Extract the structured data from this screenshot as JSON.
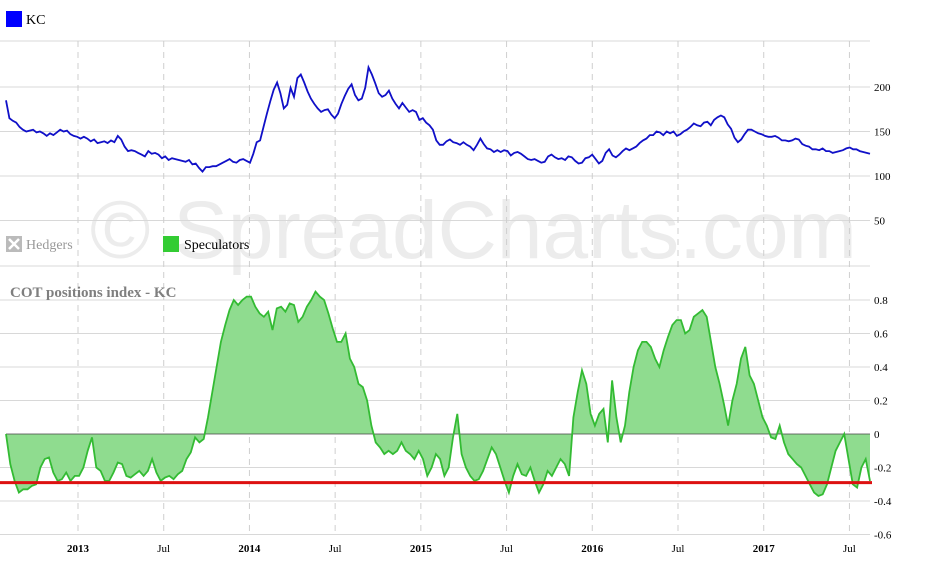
{
  "watermark": "© SpreadCharts.com",
  "colors": {
    "price_line": "#1010c8",
    "spec_line": "#33bb33",
    "spec_fill": "#8fdc8f",
    "threshold": "#dd1111",
    "grid": "#d8d8d8",
    "legend_kc": "#0000ff",
    "legend_spec": "#33cc33",
    "legend_hedgers": "#bbbbbb"
  },
  "legend": {
    "kc": "KC",
    "hedgers": "Hedgers",
    "speculators": "Speculators"
  },
  "chart_data": [
    {
      "type": "line",
      "series": [
        {
          "name": "KC",
          "x_start": 2012.58,
          "x_end": 2017.62,
          "values": [
            185,
            165,
            162,
            160,
            155,
            152,
            150,
            151,
            152,
            149,
            150,
            148,
            145,
            148,
            146,
            149,
            152,
            150,
            151,
            147,
            145,
            144,
            142,
            144,
            142,
            139,
            141,
            137,
            138,
            139,
            137,
            140,
            138,
            145,
            141,
            133,
            128,
            129,
            128,
            126,
            124,
            122,
            128,
            125,
            126,
            124,
            120,
            122,
            118,
            120,
            119,
            118,
            117,
            116,
            118,
            113,
            114,
            109,
            105,
            110,
            110,
            111,
            111,
            113,
            115,
            117,
            119,
            116,
            115,
            118,
            119,
            117,
            115,
            125,
            138,
            140,
            155,
            170,
            184,
            197,
            205,
            193,
            176,
            180,
            199,
            189,
            210,
            214,
            205,
            195,
            187,
            181,
            176,
            172,
            174,
            175,
            169,
            165,
            170,
            181,
            190,
            198,
            203,
            191,
            185,
            187,
            199,
            222,
            214,
            204,
            193,
            189,
            191,
            196,
            187,
            181,
            176,
            182,
            177,
            172,
            174,
            172,
            163,
            165,
            160,
            157,
            152,
            140,
            135,
            135,
            139,
            141,
            138,
            137,
            135,
            138,
            135,
            133,
            129,
            135,
            142,
            136,
            131,
            130,
            127,
            129,
            127,
            129,
            128,
            123,
            126,
            127,
            125,
            122,
            119,
            118,
            119,
            117,
            115,
            116,
            122,
            124,
            121,
            119,
            120,
            118,
            122,
            121,
            117,
            114,
            115,
            120,
            121,
            124,
            119,
            114,
            117,
            126,
            130,
            123,
            121,
            124,
            128,
            131,
            129,
            131,
            133,
            137,
            140,
            142,
            146,
            146,
            150,
            149,
            146,
            150,
            148,
            150,
            145,
            147,
            150,
            152,
            155,
            159,
            157,
            156,
            160,
            161,
            157,
            163,
            166,
            168,
            166,
            158,
            153,
            143,
            138,
            141,
            147,
            152,
            152,
            150,
            148,
            147,
            145,
            144,
            144,
            145,
            143,
            140,
            140,
            139,
            140,
            142,
            141,
            136,
            134,
            133,
            130,
            130,
            129,
            131,
            128,
            128,
            126,
            127,
            128,
            129,
            131,
            132,
            130,
            130,
            128,
            127,
            126,
            125
          ]
        }
      ],
      "ylabels": [
        "200",
        "150",
        "100",
        "50"
      ],
      "ylim": [
        40,
        260
      ],
      "xticks": [
        {
          "value": 2013.0,
          "label": "2013",
          "major": true
        },
        {
          "value": 2013.5,
          "label": "Jul",
          "major": false
        },
        {
          "value": 2014.0,
          "label": "2014",
          "major": true
        },
        {
          "value": 2014.5,
          "label": "Jul",
          "major": false
        },
        {
          "value": 2015.0,
          "label": "2015",
          "major": true
        },
        {
          "value": 2015.5,
          "label": "Jul",
          "major": false
        },
        {
          "value": 2016.0,
          "label": "2016",
          "major": true
        },
        {
          "value": 2016.5,
          "label": "Jul",
          "major": false
        },
        {
          "value": 2017.0,
          "label": "2017",
          "major": true
        },
        {
          "value": 2017.5,
          "label": "Jul",
          "major": false
        }
      ],
      "legend": "top-left",
      "grid": true
    },
    {
      "type": "area",
      "title": "COT positions index - KC",
      "threshold": -0.29,
      "series": [
        {
          "name": "Speculators",
          "x_start": 2012.58,
          "x_end": 2017.62,
          "values": [
            0.0,
            -0.18,
            -0.28,
            -0.35,
            -0.33,
            -0.33,
            -0.31,
            -0.3,
            -0.2,
            -0.15,
            -0.14,
            -0.23,
            -0.28,
            -0.27,
            -0.23,
            -0.28,
            -0.25,
            -0.25,
            -0.2,
            -0.1,
            -0.02,
            -0.2,
            -0.22,
            -0.28,
            -0.28,
            -0.23,
            -0.17,
            -0.18,
            -0.25,
            -0.26,
            -0.24,
            -0.22,
            -0.25,
            -0.22,
            -0.15,
            -0.23,
            -0.28,
            -0.26,
            -0.25,
            -0.27,
            -0.24,
            -0.22,
            -0.15,
            -0.11,
            -0.02,
            -0.05,
            -0.03,
            0.1,
            0.25,
            0.4,
            0.55,
            0.65,
            0.74,
            0.8,
            0.77,
            0.8,
            0.82,
            0.82,
            0.76,
            0.72,
            0.7,
            0.73,
            0.62,
            0.75,
            0.76,
            0.73,
            0.78,
            0.77,
            0.67,
            0.7,
            0.76,
            0.8,
            0.85,
            0.82,
            0.8,
            0.72,
            0.63,
            0.55,
            0.55,
            0.6,
            0.45,
            0.4,
            0.3,
            0.28,
            0.2,
            0.05,
            -0.05,
            -0.08,
            -0.12,
            -0.1,
            -0.12,
            -0.1,
            -0.05,
            -0.1,
            -0.12,
            -0.15,
            -0.1,
            -0.15,
            -0.25,
            -0.2,
            -0.12,
            -0.15,
            -0.25,
            -0.2,
            -0.02,
            0.12,
            -0.12,
            -0.2,
            -0.25,
            -0.28,
            -0.27,
            -0.22,
            -0.15,
            -0.08,
            -0.12,
            -0.2,
            -0.28,
            -0.35,
            -0.25,
            -0.18,
            -0.24,
            -0.25,
            -0.2,
            -0.28,
            -0.35,
            -0.3,
            -0.22,
            -0.25,
            -0.2,
            -0.15,
            -0.18,
            -0.25,
            0.1,
            0.25,
            0.38,
            0.3,
            0.12,
            0.05,
            0.12,
            0.15,
            -0.05,
            0.32,
            0.1,
            -0.05,
            0.05,
            0.25,
            0.4,
            0.5,
            0.55,
            0.55,
            0.52,
            0.45,
            0.4,
            0.5,
            0.58,
            0.65,
            0.68,
            0.68,
            0.6,
            0.62,
            0.7,
            0.72,
            0.74,
            0.7,
            0.55,
            0.4,
            0.3,
            0.18,
            0.05,
            0.2,
            0.3,
            0.45,
            0.52,
            0.35,
            0.3,
            0.2,
            0.1,
            0.05,
            -0.02,
            -0.03,
            0.05,
            -0.05,
            -0.12,
            -0.15,
            -0.18,
            -0.2,
            -0.25,
            -0.3,
            -0.35,
            -0.37,
            -0.36,
            -0.3,
            -0.2,
            -0.1,
            -0.05,
            0.0,
            -0.15,
            -0.3,
            -0.32,
            -0.2,
            -0.15,
            -0.28
          ]
        }
      ],
      "ylabels": [
        "0.8",
        "0.6",
        "0.4",
        "0.2",
        "0",
        "-0.2",
        "-0.4",
        "-0.6"
      ],
      "ylim": [
        -0.6,
        0.9
      ],
      "grid": true
    }
  ]
}
